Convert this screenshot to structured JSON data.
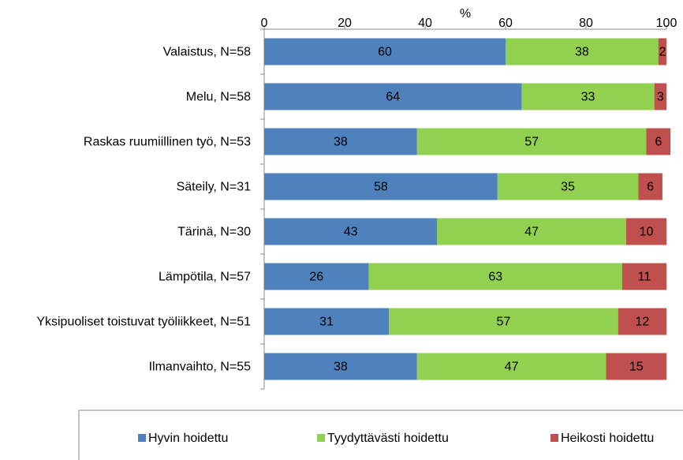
{
  "chart_data": {
    "type": "stacked_bar_horizontal",
    "x_label": "%",
    "categories": [
      "Valaistus, N=58",
      "Melu, N=58",
      "Raskas ruumiillinen työ, N=53",
      "Säteily, N=31",
      "Tärinä, N=30",
      "Lämpötila, N=57",
      "Yksipuoliset toistuvat työliikkeet, N=51",
      "Ilmanvaihto, N=55"
    ],
    "series": [
      {
        "name": "Hyvin hoidettu",
        "color": "#4f81bd",
        "values": [
          60,
          64,
          38,
          58,
          43,
          26,
          31,
          38
        ]
      },
      {
        "name": "Tyydyttävästi hoidettu",
        "color": "#92d050",
        "values": [
          38,
          33,
          57,
          35,
          47,
          63,
          57,
          47
        ]
      },
      {
        "name": "Heikosti hoidettu",
        "color": "#c0504d",
        "values": [
          2,
          3,
          6,
          6,
          10,
          11,
          12,
          15
        ]
      }
    ],
    "xlim": [
      0,
      100
    ],
    "xticks": [
      0,
      20,
      40,
      60,
      80,
      100
    ],
    "legend": "bottom"
  }
}
